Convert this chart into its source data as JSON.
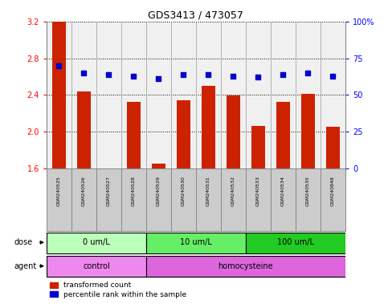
{
  "title": "GDS3413 / 473057",
  "samples": [
    "GSM240525",
    "GSM240526",
    "GSM240527",
    "GSM240528",
    "GSM240529",
    "GSM240530",
    "GSM240531",
    "GSM240532",
    "GSM240533",
    "GSM240534",
    "GSM240535",
    "GSM240848"
  ],
  "transformed_count": [
    3.21,
    2.44,
    1.6,
    2.32,
    1.65,
    2.34,
    2.5,
    2.39,
    2.06,
    2.32,
    2.41,
    2.05
  ],
  "percentile_rank": [
    70,
    65,
    64,
    63,
    61,
    64,
    64,
    63,
    62,
    64,
    65,
    63
  ],
  "ylim_left": [
    1.6,
    3.2
  ],
  "ylim_right": [
    0,
    100
  ],
  "yticks_left": [
    1.6,
    2.0,
    2.4,
    2.8,
    3.2
  ],
  "yticks_right": [
    0,
    25,
    50,
    75,
    100
  ],
  "bar_color": "#cc2200",
  "dot_color": "#0000cc",
  "dose_groups": [
    {
      "label": "0 um/L",
      "start": 0,
      "end": 4,
      "color": "#bbffbb"
    },
    {
      "label": "10 um/L",
      "start": 4,
      "end": 8,
      "color": "#66ee66"
    },
    {
      "label": "100 um/L",
      "start": 8,
      "end": 12,
      "color": "#22cc22"
    }
  ],
  "agent_groups": [
    {
      "label": "control",
      "start": 0,
      "end": 4,
      "color": "#ee88ee"
    },
    {
      "label": "homocysteine",
      "start": 4,
      "end": 12,
      "color": "#dd66dd"
    }
  ],
  "dose_label": "dose",
  "agent_label": "agent",
  "legend_bar": "transformed count",
  "legend_dot": "percentile rank within the sample",
  "bg_color": "#ffffff",
  "sample_box_color": "#cccccc",
  "sample_box_edge": "#888888"
}
